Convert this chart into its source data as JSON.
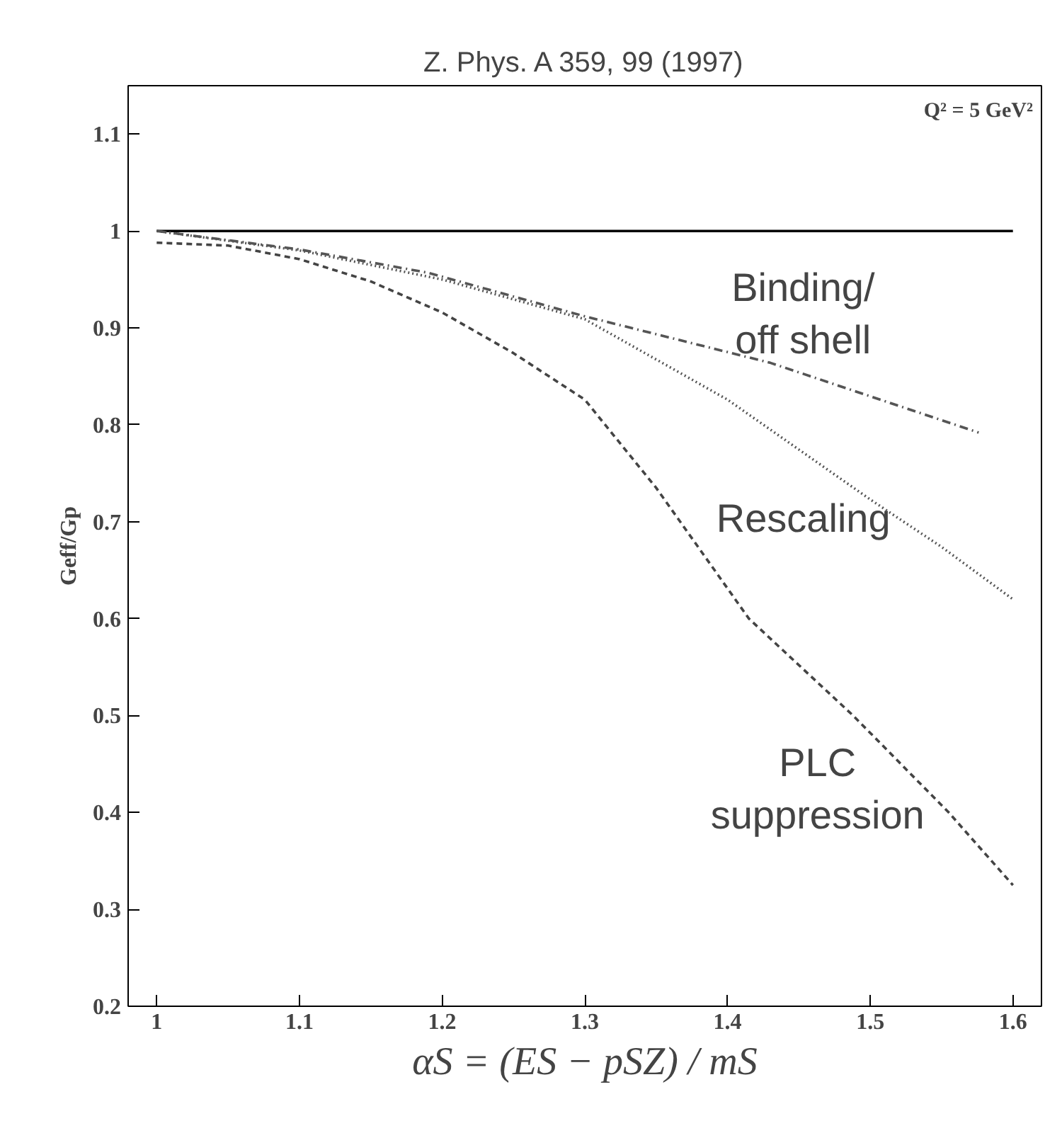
{
  "chart_data": {
    "type": "line",
    "title": "Z. Phys. A 359, 99 (1997)",
    "xlabel": "αS = (ES − pSZ) / mS",
    "ylabel": "Geff/Gp",
    "xlim": [
      0.98,
      1.62
    ],
    "ylim": [
      0.2,
      1.15
    ],
    "xticks": [
      1,
      1.1,
      1.2,
      1.3,
      1.4,
      1.5,
      1.6
    ],
    "yticks": [
      0.2,
      0.3,
      0.4,
      0.5,
      0.6,
      0.7,
      0.8,
      0.9,
      1,
      1.1
    ],
    "grid": false,
    "marker": "none",
    "series": [
      {
        "color": "#000000",
        "line_style": "solid",
        "x": [
          1,
          1.6
        ],
        "values": [
          1,
          1
        ]
      },
      {
        "name": "Binding/\noff shell",
        "color": "#555555",
        "line_style": "dashdot",
        "x": [
          1,
          1.1,
          1.19,
          1.3,
          1.43,
          1.576
        ],
        "values": [
          1.0,
          0.981,
          0.957,
          0.912,
          0.864,
          0.792
        ]
      },
      {
        "name": "Rescaling",
        "color": "#555555",
        "line_style": "dotted",
        "x": [
          1,
          1.1,
          1.2,
          1.3,
          1.4,
          1.5,
          1.55,
          1.6
        ],
        "values": [
          1.0,
          0.98,
          0.95,
          0.909,
          0.826,
          0.723,
          0.674,
          0.62
        ]
      },
      {
        "name": "PLC\nsuppression",
        "color": "#444444",
        "line_style": "dashed",
        "x": [
          1,
          1.05,
          1.1,
          1.15,
          1.2,
          1.25,
          1.3,
          1.35,
          1.415,
          1.488,
          1.555,
          1.6
        ],
        "values": [
          0.988,
          0.985,
          0.971,
          0.948,
          0.916,
          0.874,
          0.826,
          0.735,
          0.6,
          0.5,
          0.4,
          0.325
        ]
      }
    ],
    "annotations": [
      "Q² = 5 GeV²"
    ]
  }
}
